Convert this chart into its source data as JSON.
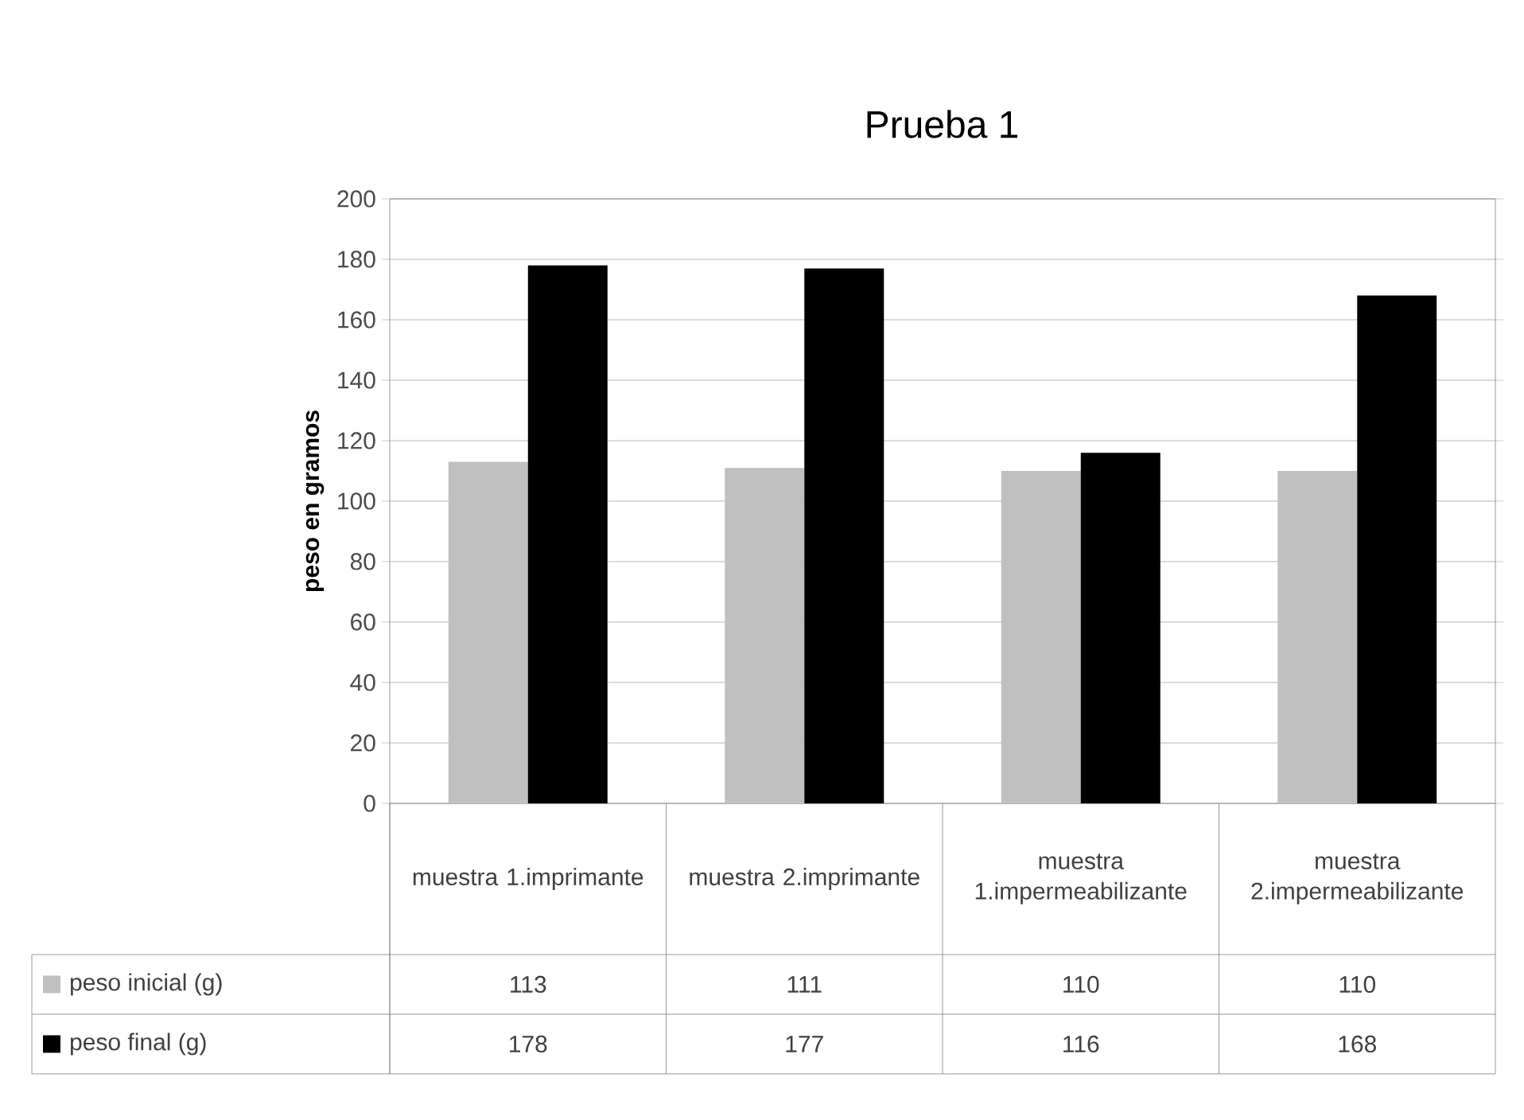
{
  "chart_data": {
    "type": "bar",
    "title": "Prueba 1",
    "ylabel": "peso en gramos",
    "categories": [
      "muestra 1.imprimante",
      "muestra 2.imprimante",
      "muestra 1.impermeabilizante",
      "muestra 2.impermeabilizante"
    ],
    "series": [
      {
        "name": "peso inicial (g)",
        "color": "#c0c0c0",
        "values": [
          113,
          111,
          110,
          110
        ]
      },
      {
        "name": "peso final (g)",
        "color": "#000000",
        "values": [
          178,
          177,
          116,
          168
        ]
      }
    ],
    "ylim": [
      0,
      200
    ],
    "yticks": [
      0,
      20,
      40,
      60,
      80,
      100,
      120,
      140,
      160,
      180,
      200
    ],
    "grid": "y",
    "legend": "bottom",
    "data_labels": true
  }
}
